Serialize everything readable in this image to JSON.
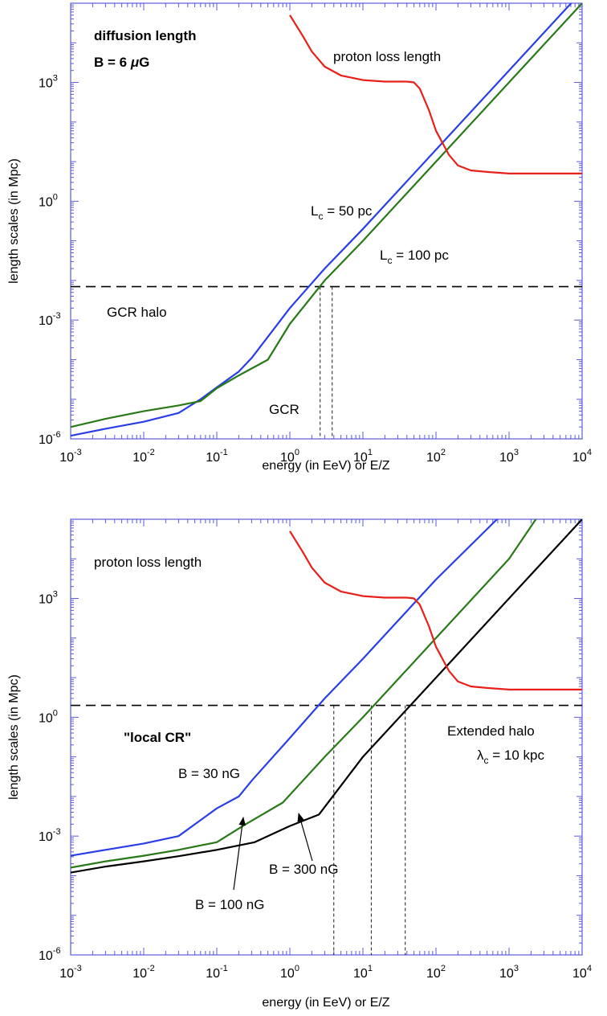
{
  "chart_data": [
    {
      "type": "line",
      "xlabel": "energy (in EeV) or E/Z",
      "ylabel": "length scales (in Mpc)",
      "xscale": "log",
      "yscale": "log",
      "xlim": [
        0.001,
        10000
      ],
      "ylim": [
        1e-06,
        100000.0
      ],
      "x_ticks": [
        {
          "b": "10",
          "e": "-3"
        },
        {
          "b": "10",
          "e": "-2"
        },
        {
          "b": "10",
          "e": "-1"
        },
        {
          "b": "10",
          "e": "0"
        },
        {
          "b": "10",
          "e": "1"
        },
        {
          "b": "10",
          "e": "2"
        },
        {
          "b": "10",
          "e": "3"
        },
        {
          "b": "10",
          "e": "4"
        }
      ],
      "y_ticks": [
        {
          "v": -6,
          "b": "10",
          "e": "-6"
        },
        {
          "v": -3,
          "b": "10",
          "e": "-3"
        },
        {
          "v": 0,
          "b": "10",
          "e": "0"
        },
        {
          "v": 3,
          "b": "10",
          "e": "3"
        }
      ],
      "series": [
        {
          "id": "lc50",
          "color": "#2a3ee8",
          "x": [
            0.001,
            0.003,
            0.01,
            0.03,
            0.06,
            0.1,
            0.2,
            0.3,
            1,
            3,
            10,
            100,
            1000,
            10000
          ],
          "y": [
            1.2e-06,
            1.8e-06,
            2.7e-06,
            4.5e-06,
            1e-05,
            2e-05,
            5e-05,
            0.00011,
            0.002,
            0.02,
            0.2,
            20,
            2000,
            200000
          ]
        },
        {
          "id": "lc100",
          "color": "#287a18",
          "x": [
            0.001,
            0.003,
            0.01,
            0.03,
            0.06,
            0.1,
            0.2,
            0.5,
            1,
            3,
            10,
            100,
            1000,
            10000
          ],
          "y": [
            2e-06,
            3.2e-06,
            5e-06,
            7e-06,
            9e-06,
            1.9e-05,
            4e-05,
            0.0001,
            0.0008,
            0.01,
            0.1,
            10,
            1000,
            100000
          ]
        },
        {
          "id": "loss",
          "color": "#e8201a",
          "x": [
            1,
            1.5,
            2,
            3,
            5,
            10,
            20,
            40,
            50,
            60,
            80,
            100,
            150,
            200,
            300,
            500,
            1000,
            2000,
            10000
          ],
          "y": [
            50000,
            15000,
            6000,
            2500,
            1500,
            1150,
            1050,
            1050,
            1000,
            700,
            200,
            60,
            15,
            8,
            6,
            5.5,
            5,
            5,
            5
          ]
        }
      ],
      "hlines": [
        {
          "y": 0.007,
          "style": "dashed"
        }
      ],
      "vlines": [
        {
          "x": 2.6,
          "y_to": 0.007
        },
        {
          "x": 3.8,
          "y_to": 0.007
        }
      ],
      "annotations": {
        "title": "diffusion length",
        "b_field": "B = 6 μG",
        "b_prefix": "B = 6 ",
        "b_mu": "μ",
        "b_unit": "G",
        "loss": "proton loss length",
        "lc50_L": "L",
        "lc50_sub": "c",
        "lc50_rest": " = 50 pc",
        "lc100_L": "L",
        "lc100_sub": "c",
        "lc100_rest": " = 100 pc",
        "halo": "GCR halo",
        "gcr": "GCR"
      }
    },
    {
      "type": "line",
      "xlabel": "energy (in EeV) or E/Z",
      "ylabel": "length scales (in Mpc)",
      "xscale": "log",
      "yscale": "log",
      "xlim": [
        0.001,
        10000
      ],
      "ylim": [
        1e-06,
        100000.0
      ],
      "x_ticks": [
        {
          "b": "10",
          "e": "-3"
        },
        {
          "b": "10",
          "e": "-2"
        },
        {
          "b": "10",
          "e": "-1"
        },
        {
          "b": "10",
          "e": "0"
        },
        {
          "b": "10",
          "e": "1"
        },
        {
          "b": "10",
          "e": "2"
        },
        {
          "b": "10",
          "e": "3"
        },
        {
          "b": "10",
          "e": "4"
        }
      ],
      "y_ticks": [
        {
          "v": -6,
          "b": "10",
          "e": "-6"
        },
        {
          "v": -3,
          "b": "10",
          "e": "-3"
        },
        {
          "v": 0,
          "b": "10",
          "e": "0"
        },
        {
          "v": 3,
          "b": "10",
          "e": "3"
        }
      ],
      "series": [
        {
          "id": "b30",
          "color": "#2a3ee8",
          "x": [
            0.001,
            0.003,
            0.01,
            0.03,
            0.1,
            0.2,
            0.3,
            1,
            3,
            10,
            100,
            1000
          ],
          "y": [
            0.00032,
            0.00045,
            0.00065,
            0.001,
            0.005,
            0.01,
            0.025,
            0.3,
            3,
            30,
            3000,
            200000
          ]
        },
        {
          "id": "b100",
          "color": "#287a18",
          "x": [
            0.001,
            0.003,
            0.01,
            0.03,
            0.1,
            0.25,
            0.8,
            3,
            10,
            100,
            1000,
            3000
          ],
          "y": [
            0.00016,
            0.00023,
            0.00032,
            0.00045,
            0.0007,
            0.002,
            0.007,
            0.1,
            1,
            100,
            10000,
            200000
          ]
        },
        {
          "id": "b300",
          "color": "#000000",
          "x": [
            0.001,
            0.003,
            0.01,
            0.03,
            0.1,
            0.33,
            1,
            2.5,
            10,
            100,
            1000,
            10000
          ],
          "y": [
            0.00012,
            0.00017,
            0.00023,
            0.00031,
            0.00045,
            0.0007,
            0.0018,
            0.0035,
            0.1,
            10,
            1000,
            100000
          ]
        },
        {
          "id": "loss",
          "color": "#e8201a",
          "x": [
            1,
            1.5,
            2,
            3,
            5,
            10,
            20,
            40,
            50,
            60,
            80,
            100,
            150,
            200,
            300,
            500,
            1000,
            2000,
            10000
          ],
          "y": [
            50000,
            15000,
            6000,
            2500,
            1500,
            1150,
            1050,
            1050,
            1000,
            700,
            200,
            60,
            15,
            8,
            6,
            5.5,
            5,
            5,
            5
          ]
        }
      ],
      "hlines": [
        {
          "y": 2,
          "style": "dashed"
        }
      ],
      "vlines": [
        {
          "x": 4,
          "y_to": 2
        },
        {
          "x": 13,
          "y_to": 2
        },
        {
          "x": 38,
          "y_to": 2
        }
      ],
      "annotations": {
        "loss": "proton loss length",
        "local": "\"local CR\"",
        "ext": "Extended halo",
        "lam": "λ",
        "lam_sub": "c",
        "lam_rest": " = 10 kpc",
        "b30": "B = 30 nG",
        "b100": "B = 100 nG",
        "b300": "B = 300 nG"
      }
    }
  ]
}
